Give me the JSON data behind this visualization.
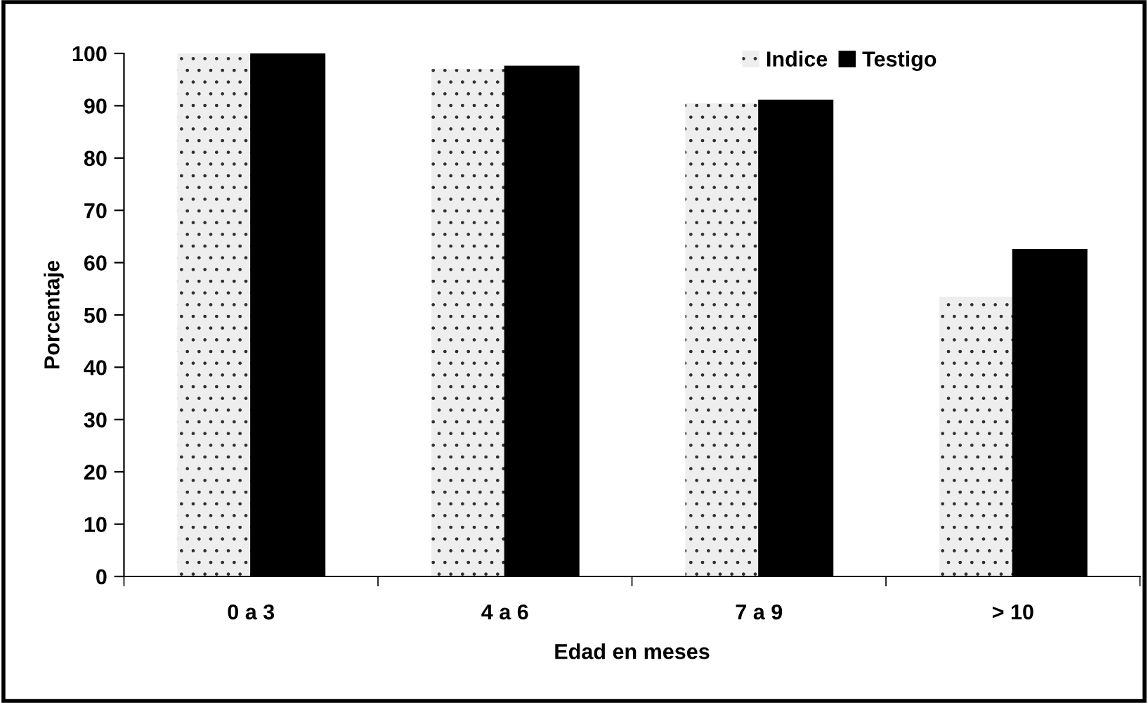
{
  "chart_data": {
    "type": "bar",
    "xlabel": "Edad en meses",
    "ylabel": "Porcentaje",
    "categories": [
      "0 a 3",
      "4 a 6",
      "7 a 9",
      "> 10"
    ],
    "series": [
      {
        "name": "Indice",
        "color": "#eeeeee",
        "values": [
          100,
          97,
          90.5,
          53.5
        ]
      },
      {
        "name": "Testigo",
        "color": "#000000",
        "values": [
          100,
          97.5,
          91,
          62.5
        ]
      }
    ],
    "ylim": [
      0,
      100
    ],
    "yticks": [
      0,
      10,
      20,
      30,
      40,
      50,
      60,
      70,
      80,
      90,
      100
    ],
    "grid": false,
    "legend": "top right"
  }
}
